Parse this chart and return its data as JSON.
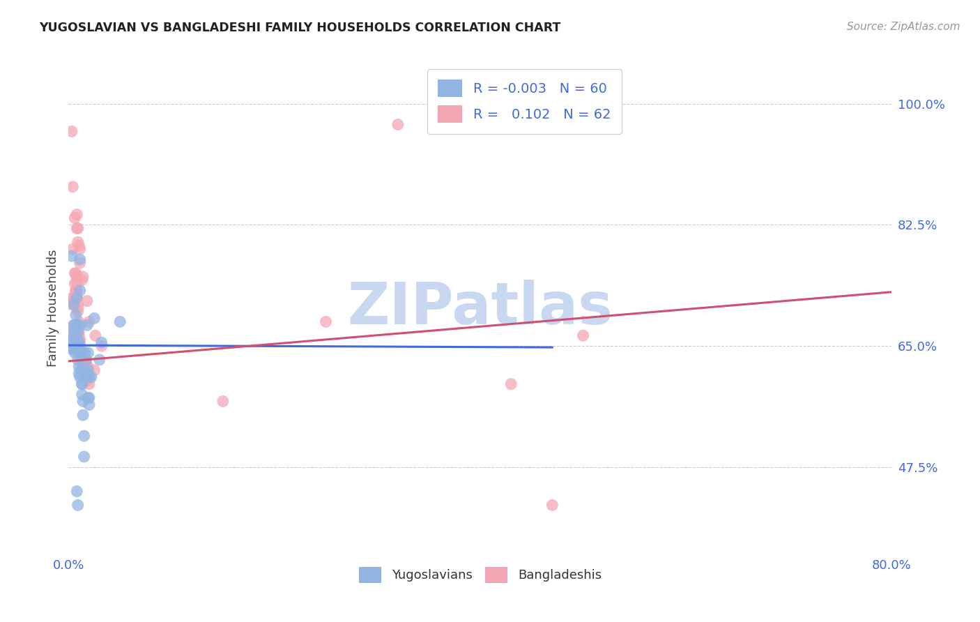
{
  "title": "YUGOSLAVIAN VS BANGLADESHI FAMILY HOUSEHOLDS CORRELATION CHART",
  "source": "Source: ZipAtlas.com",
  "ylabel": "Family Households",
  "ytick_labels": [
    "47.5%",
    "65.0%",
    "82.5%",
    "100.0%"
  ],
  "ytick_values": [
    0.475,
    0.65,
    0.825,
    1.0
  ],
  "xlim": [
    0.0,
    0.8
  ],
  "ylim": [
    0.35,
    1.06
  ],
  "blue_color": "#92b4e3",
  "pink_color": "#f4a7b3",
  "title_color": "#222222",
  "axis_label_color": "#4169e1",
  "legend_r_color": "#4169e1",
  "blue_scatter": [
    [
      0.002,
      0.655
    ],
    [
      0.003,
      0.66
    ],
    [
      0.004,
      0.67
    ],
    [
      0.004,
      0.645
    ],
    [
      0.005,
      0.68
    ],
    [
      0.005,
      0.655
    ],
    [
      0.005,
      0.645
    ],
    [
      0.006,
      0.66
    ],
    [
      0.006,
      0.64
    ],
    [
      0.007,
      0.695
    ],
    [
      0.007,
      0.65
    ],
    [
      0.008,
      0.66
    ],
    [
      0.008,
      0.72
    ],
    [
      0.008,
      0.68
    ],
    [
      0.008,
      0.645
    ],
    [
      0.009,
      0.65
    ],
    [
      0.009,
      0.63
    ],
    [
      0.009,
      0.67
    ],
    [
      0.01,
      0.64
    ],
    [
      0.01,
      0.62
    ],
    [
      0.01,
      0.655
    ],
    [
      0.011,
      0.775
    ],
    [
      0.011,
      0.73
    ],
    [
      0.011,
      0.68
    ],
    [
      0.012,
      0.64
    ],
    [
      0.012,
      0.615
    ],
    [
      0.013,
      0.595
    ],
    [
      0.013,
      0.58
    ],
    [
      0.014,
      0.57
    ],
    [
      0.014,
      0.55
    ],
    [
      0.015,
      0.52
    ],
    [
      0.015,
      0.49
    ],
    [
      0.016,
      0.64
    ],
    [
      0.017,
      0.63
    ],
    [
      0.018,
      0.68
    ],
    [
      0.019,
      0.64
    ],
    [
      0.019,
      0.575
    ],
    [
      0.02,
      0.575
    ],
    [
      0.02,
      0.565
    ],
    [
      0.025,
      0.69
    ],
    [
      0.03,
      0.63
    ],
    [
      0.032,
      0.655
    ],
    [
      0.05,
      0.685
    ],
    [
      0.003,
      0.78
    ],
    [
      0.004,
      0.66
    ],
    [
      0.005,
      0.67
    ],
    [
      0.005,
      0.71
    ],
    [
      0.006,
      0.66
    ],
    [
      0.007,
      0.68
    ],
    [
      0.008,
      0.66
    ],
    [
      0.009,
      0.655
    ],
    [
      0.01,
      0.655
    ],
    [
      0.01,
      0.61
    ],
    [
      0.011,
      0.605
    ],
    [
      0.013,
      0.595
    ],
    [
      0.018,
      0.61
    ],
    [
      0.019,
      0.615
    ],
    [
      0.02,
      0.605
    ],
    [
      0.022,
      0.605
    ],
    [
      0.008,
      0.44
    ],
    [
      0.009,
      0.42
    ]
  ],
  "pink_scatter": [
    [
      0.002,
      0.655
    ],
    [
      0.003,
      0.71
    ],
    [
      0.004,
      0.72
    ],
    [
      0.004,
      0.79
    ],
    [
      0.005,
      0.72
    ],
    [
      0.005,
      0.71
    ],
    [
      0.005,
      0.68
    ],
    [
      0.006,
      0.755
    ],
    [
      0.006,
      0.74
    ],
    [
      0.007,
      0.755
    ],
    [
      0.007,
      0.73
    ],
    [
      0.007,
      0.73
    ],
    [
      0.007,
      0.72
    ],
    [
      0.008,
      0.75
    ],
    [
      0.008,
      0.73
    ],
    [
      0.008,
      0.74
    ],
    [
      0.008,
      0.72
    ],
    [
      0.009,
      0.71
    ],
    [
      0.009,
      0.705
    ],
    [
      0.009,
      0.7
    ],
    [
      0.01,
      0.685
    ],
    [
      0.01,
      0.67
    ],
    [
      0.01,
      0.665
    ],
    [
      0.011,
      0.66
    ],
    [
      0.011,
      0.655
    ],
    [
      0.011,
      0.65
    ],
    [
      0.012,
      0.645
    ],
    [
      0.012,
      0.64
    ],
    [
      0.013,
      0.63
    ],
    [
      0.013,
      0.625
    ],
    [
      0.014,
      0.62
    ],
    [
      0.014,
      0.615
    ],
    [
      0.015,
      0.625
    ],
    [
      0.015,
      0.62
    ],
    [
      0.015,
      0.615
    ],
    [
      0.016,
      0.61
    ],
    [
      0.016,
      0.63
    ],
    [
      0.017,
      0.625
    ],
    [
      0.018,
      0.615
    ],
    [
      0.018,
      0.6
    ],
    [
      0.019,
      0.62
    ],
    [
      0.02,
      0.595
    ],
    [
      0.025,
      0.615
    ],
    [
      0.003,
      0.96
    ],
    [
      0.004,
      0.88
    ],
    [
      0.006,
      0.835
    ],
    [
      0.008,
      0.84
    ],
    [
      0.008,
      0.82
    ],
    [
      0.009,
      0.82
    ],
    [
      0.009,
      0.8
    ],
    [
      0.01,
      0.795
    ],
    [
      0.011,
      0.79
    ],
    [
      0.011,
      0.77
    ],
    [
      0.013,
      0.745
    ],
    [
      0.014,
      0.75
    ],
    [
      0.018,
      0.715
    ],
    [
      0.02,
      0.685
    ],
    [
      0.026,
      0.665
    ],
    [
      0.032,
      0.65
    ],
    [
      0.25,
      0.685
    ],
    [
      0.5,
      0.665
    ],
    [
      0.32,
      0.97
    ],
    [
      0.43,
      0.595
    ],
    [
      0.47,
      0.42
    ],
    [
      0.15,
      0.57
    ]
  ],
  "blue_trend": {
    "x_start": 0.0,
    "x_end": 0.47,
    "y_start": 0.651,
    "y_end": 0.648
  },
  "pink_trend": {
    "x_start": 0.0,
    "x_end": 0.8,
    "y_start": 0.628,
    "y_end": 0.728
  },
  "grid_color": "#cccccc",
  "background_color": "#ffffff",
  "watermark": "ZIPatlas",
  "watermark_color": "#c8d8f0"
}
